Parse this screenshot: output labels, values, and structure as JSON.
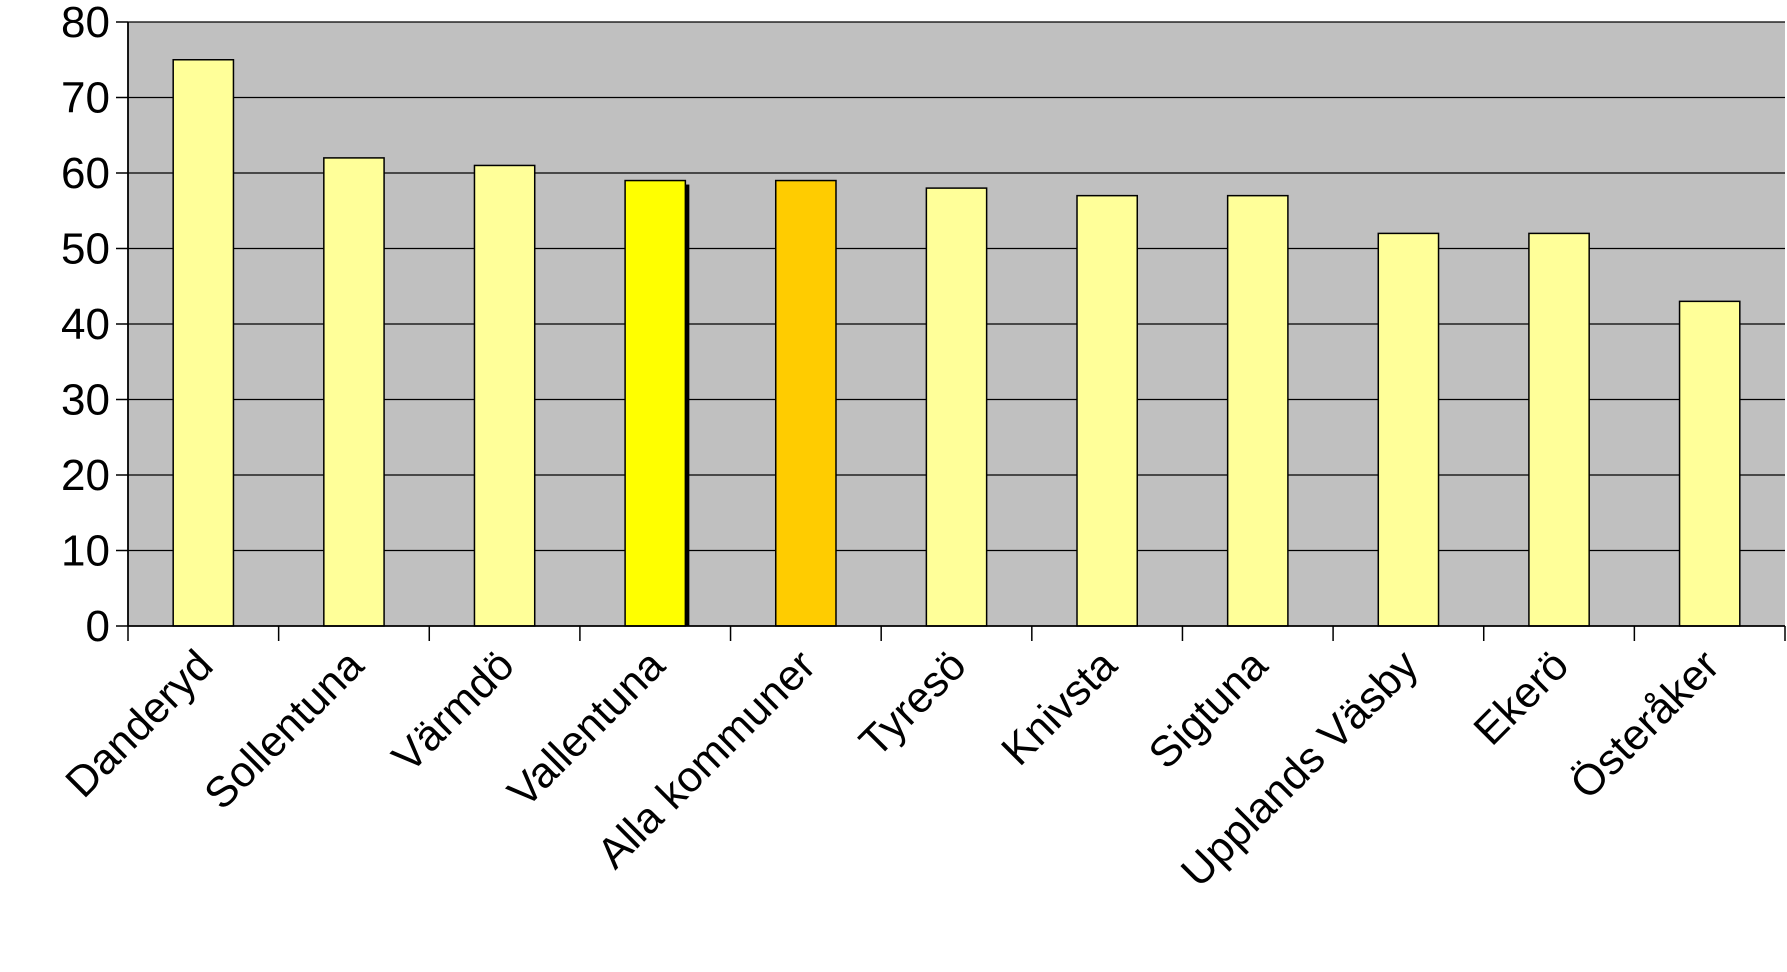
{
  "chart_data": {
    "type": "bar",
    "title": "",
    "xlabel": "",
    "ylabel": "",
    "ylim": [
      0,
      80
    ],
    "yticks": [
      0,
      10,
      20,
      30,
      40,
      50,
      60,
      70,
      80
    ],
    "grid": true,
    "legend": "none",
    "categories": [
      "Danderyd",
      "Sollentuna",
      "Värmdö",
      "Vallentuna",
      "Alla kommuner",
      "Tyresö",
      "Knivsta",
      "Sigtuna",
      "Upplands Väsby",
      "Ekerö",
      "Österåker"
    ],
    "values": [
      75,
      62,
      61,
      59,
      59,
      58,
      57,
      57,
      52,
      52,
      43
    ],
    "colors": {
      "plot_background": "#c0c0c0",
      "default_bar": "#ffff99",
      "highlight_bar": "#ffff00",
      "average_bar": "#ffcc00",
      "bar_outline": "#000000"
    },
    "bar_colors": [
      "#ffff99",
      "#ffff99",
      "#ffff99",
      "#ffff00",
      "#ffcc00",
      "#ffff99",
      "#ffff99",
      "#ffff99",
      "#ffff99",
      "#ffff99",
      "#ffff99"
    ]
  }
}
